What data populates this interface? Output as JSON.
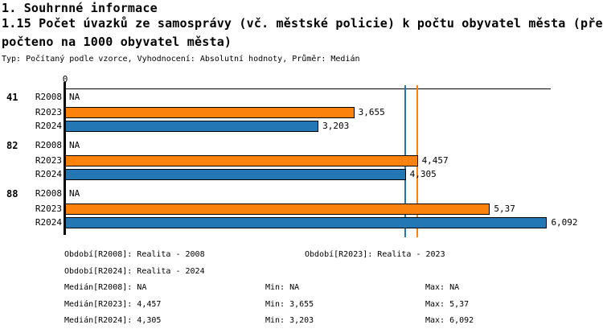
{
  "header": {
    "section_title": "1. Souhrnné informace",
    "title_line1": "1.15 Počet úvazků ze samosprávy (vč. městské policie) k počtu obyvatel města (pře",
    "title_line2": "počteno na 1000 obyvatel města)",
    "subtitle": "Typ: Počítaný podle vzorce, Vyhodnocení: Absolutní hodnoty, Průměr: Medián"
  },
  "chart_data": {
    "type": "bar",
    "orientation": "horizontal",
    "title": "1.15 Počet úvazků ze samosprávy (vč. městské policie) k počtu obyvatel města (přepočteno na 1000 obyvatel města)",
    "x_axis": {
      "origin_tick": "0",
      "min": 0,
      "approx_max": 6.15,
      "grid": false
    },
    "series": [
      "R2008",
      "R2023",
      "R2024"
    ],
    "series_colors": {
      "R2008": null,
      "R2023": "#fb830d",
      "R2024": "#2277b4"
    },
    "na_label": "NA",
    "groups": [
      {
        "label": "41",
        "rows": [
          {
            "series": "R2008",
            "value": null,
            "display": "NA"
          },
          {
            "series": "R2023",
            "value": 3.655,
            "display": "3,655"
          },
          {
            "series": "R2024",
            "value": 3.203,
            "display": "3,203"
          }
        ]
      },
      {
        "label": "82",
        "rows": [
          {
            "series": "R2008",
            "value": null,
            "display": "NA"
          },
          {
            "series": "R2023",
            "value": 4.457,
            "display": "4,457"
          },
          {
            "series": "R2024",
            "value": 4.305,
            "display": "4,305"
          }
        ]
      },
      {
        "label": "88",
        "rows": [
          {
            "series": "R2008",
            "value": null,
            "display": "NA"
          },
          {
            "series": "R2023",
            "value": 5.37,
            "display": "5,37"
          },
          {
            "series": "R2024",
            "value": 6.092,
            "display": "6,092"
          }
        ]
      }
    ],
    "reference_lines": [
      {
        "name": "median-r2024",
        "series": "R2024",
        "value": 4.305,
        "color": "#2277b4"
      },
      {
        "name": "median-r2023",
        "series": "R2023",
        "value": 4.457,
        "color": "#fb830d"
      }
    ],
    "legend_position": "bottom"
  },
  "legend": {
    "period_r2008": "Období[R2008]: Realita - 2008",
    "period_r2023": "Období[R2023]: Realita - 2023",
    "period_r2024": "Období[R2024]: Realita - 2024",
    "median_r2008": "Medián[R2008]: NA",
    "min_r2008": "Min: NA",
    "max_r2008": "Max: NA",
    "median_r2023": "Medián[R2023]: 4,457",
    "min_r2023": "Min: 3,655",
    "max_r2023": "Max: 5,37",
    "median_r2024": "Medián[R2024]: 4,305",
    "min_r2024": "Min: 3,203",
    "max_r2024": "Max: 6,092"
  }
}
